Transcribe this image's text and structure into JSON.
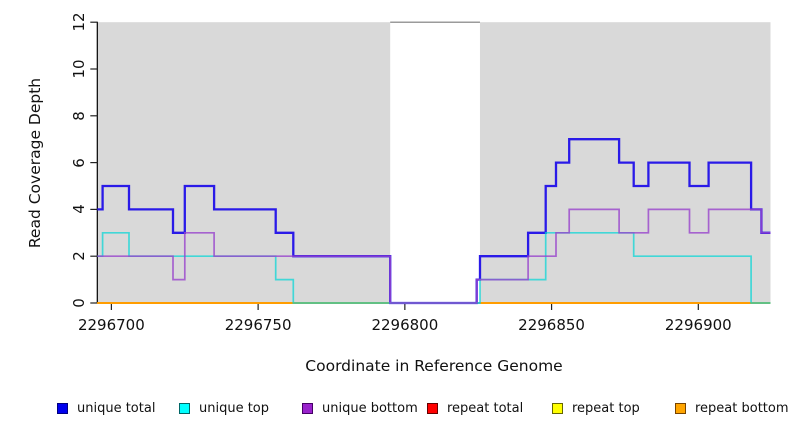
{
  "chart_data": {
    "type": "line",
    "subtype": "step-coverage-plot",
    "title": "",
    "xlabel": "Coordinate in Reference Genome",
    "ylabel": "Read Coverage Depth",
    "xlim": [
      2296695.2,
      2296924.6
    ],
    "ylim": [
      0,
      12
    ],
    "x_ticks": [
      "2296700",
      "2296750",
      "2296800",
      "2296850",
      "2296900"
    ],
    "x_tick_values": [
      2296700,
      2296750,
      2296800,
      2296850,
      2296900
    ],
    "y_ticks": [
      "0",
      "2",
      "4",
      "6",
      "8",
      "10",
      "12"
    ],
    "y_tick_values": [
      0,
      2,
      4,
      6,
      8,
      10,
      12
    ],
    "grid": "off",
    "plot_bg_color": "#d9d9d9",
    "gap_region": {
      "x_start": 2296795,
      "x_end": 2296825.6,
      "color": "#ffffff",
      "top_border_color": "#7a7a7a"
    },
    "legend_position": "bottom",
    "series": [
      {
        "name": "unique total",
        "color": "#2a1ae8",
        "line_width": 2.3,
        "opacity": 1,
        "legend_fill": "#0000ee",
        "legend_border": "#000080",
        "paths": [
          [
            [
              2296695.2,
              4
            ],
            [
              2296697,
              5
            ],
            [
              2296706,
              4
            ],
            [
              2296721,
              3
            ],
            [
              2296725,
              5
            ],
            [
              2296735,
              4
            ],
            [
              2296756,
              3
            ],
            [
              2296762,
              2
            ],
            [
              2296795,
              0
            ],
            [
              2296824.5,
              1
            ],
            [
              2296825.6,
              2
            ],
            [
              2296842,
              3
            ],
            [
              2296848,
              5
            ],
            [
              2296851.5,
              6
            ],
            [
              2296856,
              7
            ],
            [
              2296873,
              6
            ],
            [
              2296878,
              5
            ],
            [
              2296883,
              6
            ],
            [
              2296897,
              5
            ],
            [
              2296903.5,
              6
            ],
            [
              2296918,
              4
            ],
            [
              2296921.5,
              3
            ],
            [
              2296924.6,
              3
            ]
          ]
        ]
      },
      {
        "name": "unique top",
        "color": "#00d5d5",
        "line_width": 1.7,
        "opacity": 0.7,
        "legend_fill": "#00ffff",
        "legend_border": "#006666",
        "paths": [
          [
            [
              2296695.2,
              2
            ],
            [
              2296697,
              3
            ],
            [
              2296706,
              2
            ],
            [
              2296756,
              1
            ],
            [
              2296762,
              0
            ],
            [
              2296825.6,
              1
            ],
            [
              2296848,
              3
            ],
            [
              2296878,
              2
            ],
            [
              2296918,
              0
            ],
            [
              2296924.6,
              0
            ]
          ]
        ]
      },
      {
        "name": "unique bottom",
        "color": "#9944cc",
        "line_width": 1.7,
        "opacity": 0.8,
        "legend_fill": "#9922cc",
        "legend_border": "#440066",
        "paths": [
          [
            [
              2296695.2,
              2
            ],
            [
              2296721,
              1
            ],
            [
              2296725,
              3
            ],
            [
              2296735,
              2
            ],
            [
              2296795,
              0
            ],
            [
              2296824.5,
              1
            ],
            [
              2296842,
              2
            ],
            [
              2296851.5,
              3
            ],
            [
              2296856,
              4
            ],
            [
              2296873,
              3
            ],
            [
              2296883,
              4
            ],
            [
              2296897,
              3
            ],
            [
              2296903.5,
              4
            ],
            [
              2296921.5,
              3
            ],
            [
              2296924.6,
              3
            ]
          ]
        ]
      },
      {
        "name": "repeat total",
        "color": "#dd0000",
        "line_width": 1.7,
        "opacity": 1,
        "legend_fill": "#ff0000",
        "legend_border": "#660000",
        "paths": [
          [
            [
              2296695.2,
              0
            ],
            [
              2296795,
              0
            ]
          ],
          [
            [
              2296825.6,
              0
            ],
            [
              2296924.6,
              0
            ]
          ]
        ]
      },
      {
        "name": "repeat top",
        "color": "#ffff00",
        "line_width": 1.7,
        "opacity": 1,
        "legend_fill": "#ffff00",
        "legend_border": "#666600",
        "paths": [
          [
            [
              2296695.2,
              0
            ],
            [
              2296795,
              0
            ]
          ],
          [
            [
              2296825.6,
              0
            ],
            [
              2296924.6,
              0
            ]
          ]
        ]
      },
      {
        "name": "repeat bottom",
        "color": "#ff9d00",
        "line_width": 1.9,
        "opacity": 1,
        "legend_fill": "#ffa500",
        "legend_border": "#774400",
        "paths": [
          [
            [
              2296695.2,
              0
            ],
            [
              2296795,
              0
            ]
          ],
          [
            [
              2296825.6,
              0
            ],
            [
              2296924.6,
              0
            ]
          ]
        ]
      }
    ],
    "draw_order": [
      "repeat total",
      "repeat top",
      "repeat bottom",
      "unique total",
      "unique top",
      "unique bottom"
    ]
  }
}
